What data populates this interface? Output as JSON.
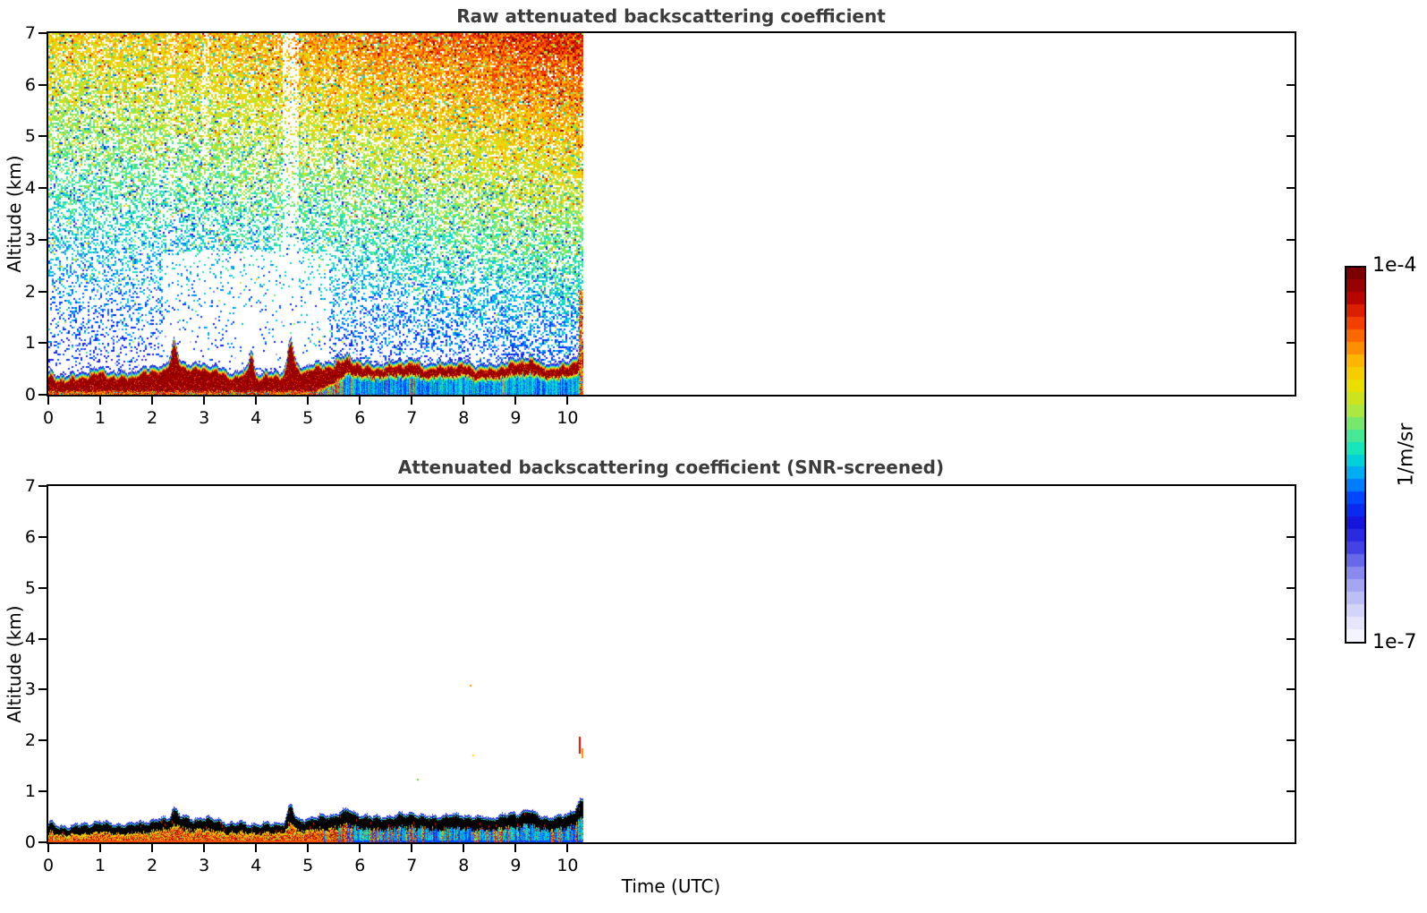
{
  "colorbar": {
    "max_label": "1e-4",
    "min_label": "1e-7",
    "unit": "1/m/sr",
    "scale": "log",
    "n_segments": 30,
    "over_color": "#000000",
    "gradient_bottom_to_top": [
      "#f4f4ff",
      "#d8d8fa",
      "#b0b0f4",
      "#7d7dec",
      "#3a3ae4",
      "#1414dd",
      "#0040ff",
      "#00a0fa",
      "#00e4cc",
      "#55e88a",
      "#b2e83c",
      "#e8e000",
      "#ffc000",
      "#ff7800",
      "#f03000",
      "#b20000",
      "#7a0000"
    ]
  },
  "chart_data": [
    {
      "type": "heatmap",
      "title": "Raw attenuated backscattering coefficient",
      "ylabel": "Altitude (km)",
      "x_range_hours": [
        0,
        24
      ],
      "x_ticks": [
        0,
        1,
        2,
        3,
        4,
        5,
        6,
        7,
        8,
        9,
        10
      ],
      "y_range_km": [
        0,
        7
      ],
      "y_ticks": [
        0,
        1,
        2,
        3,
        4,
        5,
        6,
        7
      ],
      "data_time_extent_hours": [
        0,
        10.3
      ],
      "colorscale": {
        "min": "1e-7",
        "max": "1e-4",
        "units": "1/m/sr",
        "scale": "log"
      },
      "noise_field": {
        "description": "unscreened molecular/noise speckle above boundary layer",
        "t_extent": [
          0,
          10.3
        ],
        "alt_extent_km": [
          0,
          7
        ],
        "density_base": 0.12,
        "density_alt_gain": 0.68,
        "density_time_gain": 0.15,
        "density_lowalt_right_gain": 0.25,
        "value_base": 0.3,
        "value_alt_gain": 0.42,
        "value_time_gain": 0.18,
        "value_jitter": 0.16,
        "white_pocket": {
          "t": [
            2.2,
            5.4
          ],
          "alt_km": [
            0.55,
            2.8
          ],
          "factor": 0.3
        },
        "sparse_columns": [
          {
            "t": 4.64,
            "width": 0.16,
            "factor": 0.4
          },
          {
            "t": 2.35,
            "width": 0.08,
            "factor": 0.65
          },
          {
            "t": 3.02,
            "width": 0.08,
            "factor": 0.7
          }
        ]
      },
      "boundary_layer": {
        "t_hours": [
          0,
          0.25,
          0.5,
          0.75,
          1,
          1.25,
          1.5,
          1.75,
          2,
          2.25,
          2.5,
          2.75,
          3,
          3.25,
          3.5,
          3.75,
          4,
          4.25,
          4.5,
          4.75,
          5,
          5.25,
          5.5,
          5.75,
          6,
          6.25,
          6.5,
          6.75,
          7,
          7.25,
          7.5,
          7.75,
          8,
          8.25,
          8.5,
          8.75,
          9,
          9.25,
          9.5,
          9.75,
          10,
          10.3
        ],
        "top_km": [
          0.45,
          0.38,
          0.4,
          0.46,
          0.52,
          0.44,
          0.43,
          0.5,
          0.55,
          0.6,
          0.7,
          0.58,
          0.62,
          0.55,
          0.44,
          0.48,
          0.42,
          0.45,
          0.47,
          0.55,
          0.58,
          0.62,
          0.68,
          0.8,
          0.66,
          0.6,
          0.62,
          0.68,
          0.7,
          0.6,
          0.62,
          0.66,
          0.65,
          0.6,
          0.58,
          0.65,
          0.7,
          0.78,
          0.62,
          0.6,
          0.66,
          0.88
        ],
        "spikes": [
          {
            "t": 2.42,
            "km": 1.05,
            "w": 0.05
          },
          {
            "t": 3.9,
            "km": 0.92,
            "w": 0.04
          },
          {
            "t": 4.66,
            "km": 1.12,
            "w": 0.05
          },
          {
            "t": 10.28,
            "km": 0.9,
            "w": 0.06
          }
        ],
        "core_value": 0.95,
        "core_style": "dark-red",
        "top_fringe": "thin blue line",
        "below_core_left": "red-orange streaks to ground",
        "below_core_right": "cyan-blue layer to ground",
        "warm_to_cool_transition_hour": 5.1
      },
      "edge_column": {
        "t": 10.25,
        "alt_from_km": 0,
        "alt_to_km": 2.05,
        "style": "orange-red"
      }
    },
    {
      "type": "heatmap",
      "title": "Attenuated backscattering coefficient (SNR-screened)",
      "ylabel": "Altitude (km)",
      "xlabel": "Time (UTC)",
      "x_range_hours": [
        0,
        24
      ],
      "x_ticks": [
        0,
        1,
        2,
        3,
        4,
        5,
        6,
        7,
        8,
        9,
        10
      ],
      "y_range_km": [
        0,
        7
      ],
      "y_ticks": [
        0,
        1,
        2,
        3,
        4,
        5,
        6,
        7
      ],
      "data_time_extent_hours": [
        0,
        10.3
      ],
      "colorscale": {
        "min": "1e-7",
        "max": "1e-4",
        "units": "1/m/sr",
        "scale": "log"
      },
      "background": "white (noise screened out)",
      "boundary_layer": {
        "t_hours": [
          0,
          0.25,
          0.5,
          0.75,
          1,
          1.25,
          1.5,
          1.75,
          2,
          2.25,
          2.5,
          2.75,
          3,
          3.25,
          3.5,
          3.75,
          4,
          4.25,
          4.5,
          4.75,
          5,
          5.25,
          5.5,
          5.75,
          6,
          6.25,
          6.5,
          6.75,
          7,
          7.25,
          7.5,
          7.75,
          8,
          8.25,
          8.5,
          8.75,
          9,
          9.25,
          9.5,
          9.75,
          10,
          10.3
        ],
        "top_km": [
          0.38,
          0.33,
          0.34,
          0.38,
          0.42,
          0.36,
          0.36,
          0.41,
          0.44,
          0.48,
          0.55,
          0.46,
          0.5,
          0.46,
          0.38,
          0.4,
          0.36,
          0.38,
          0.4,
          0.46,
          0.48,
          0.52,
          0.56,
          0.66,
          0.55,
          0.5,
          0.52,
          0.56,
          0.58,
          0.5,
          0.52,
          0.55,
          0.54,
          0.5,
          0.49,
          0.54,
          0.58,
          0.64,
          0.52,
          0.5,
          0.56,
          0.85
        ],
        "spikes": [
          {
            "t": 2.42,
            "km": 0.7,
            "w": 0.05
          },
          {
            "t": 4.66,
            "km": 0.76,
            "w": 0.05
          },
          {
            "t": 10.28,
            "km": 0.86,
            "w": 0.05
          }
        ],
        "core_style": "black (over-range)",
        "top_fringe": "thin blue line",
        "below_core_left": "red-orange streaks to ground",
        "below_core_right": "cyan-blue layer to ground",
        "warm_to_cool_transition_hour": 5.2
      },
      "isolated_features": [
        {
          "t": 8.12,
          "alt_km": 3.1,
          "color": "#ff8c00"
        },
        {
          "t": 8.16,
          "alt_km": 1.72,
          "color": "#ffd700"
        },
        {
          "t": 7.09,
          "alt_km": 1.24,
          "color": "#66dd22"
        },
        {
          "t": 10.22,
          "alt_from_km": 1.75,
          "alt_to_km": 2.08,
          "color": "#cc1100"
        },
        {
          "t": 10.26,
          "alt_from_km": 1.66,
          "alt_to_km": 1.84,
          "color": "#ff8c00"
        }
      ]
    }
  ]
}
